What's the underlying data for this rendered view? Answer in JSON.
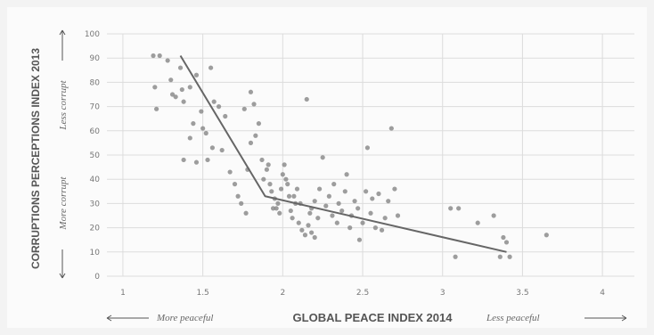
{
  "chart_data": {
    "type": "scatter",
    "xlabel": "GLOBAL PEACE INDEX 2014",
    "ylabel": "CORRUPTIONS PERCEPTIONS INDEX 2013",
    "x_low_note": "More peaceful",
    "x_high_note": "Less peaceful",
    "y_high_note": "Less corrupt",
    "y_low_note": "More corrupt",
    "xlim": [
      0.9,
      4.2
    ],
    "ylim": [
      0,
      100
    ],
    "xticks": [
      "1",
      "1.5",
      "2",
      "2.5",
      "3",
      "3.5",
      "4"
    ],
    "yticks": [
      "0",
      "10",
      "20",
      "30",
      "40",
      "50",
      "60",
      "70",
      "80",
      "90",
      "100"
    ],
    "grid": true,
    "trend_line": [
      [
        1.36,
        91
      ],
      [
        1.89,
        33
      ],
      [
        3.4,
        10
      ]
    ],
    "points": [
      [
        1.19,
        91
      ],
      [
        1.23,
        91
      ],
      [
        1.28,
        89
      ],
      [
        1.36,
        86
      ],
      [
        1.2,
        78
      ],
      [
        1.21,
        69
      ],
      [
        1.3,
        81
      ],
      [
        1.33,
        74
      ],
      [
        1.38,
        72
      ],
      [
        1.42,
        78
      ],
      [
        1.46,
        83
      ],
      [
        1.55,
        86
      ],
      [
        1.31,
        75
      ],
      [
        1.37,
        77
      ],
      [
        1.44,
        63
      ],
      [
        1.49,
        68
      ],
      [
        1.5,
        61
      ],
      [
        1.52,
        59
      ],
      [
        1.57,
        72
      ],
      [
        1.6,
        70
      ],
      [
        1.64,
        66
      ],
      [
        1.42,
        57
      ],
      [
        1.46,
        47
      ],
      [
        1.53,
        48
      ],
      [
        1.56,
        53
      ],
      [
        1.38,
        48
      ],
      [
        1.62,
        52
      ],
      [
        1.67,
        43
      ],
      [
        1.7,
        38
      ],
      [
        1.72,
        33
      ],
      [
        1.74,
        30
      ],
      [
        1.77,
        26
      ],
      [
        1.78,
        44
      ],
      [
        1.8,
        55
      ],
      [
        1.83,
        58
      ],
      [
        1.85,
        63
      ],
      [
        1.8,
        76
      ],
      [
        1.76,
        69
      ],
      [
        1.82,
        71
      ],
      [
        1.87,
        48
      ],
      [
        1.9,
        44
      ],
      [
        1.92,
        38
      ],
      [
        1.93,
        35
      ],
      [
        1.95,
        32
      ],
      [
        1.96,
        28
      ],
      [
        1.97,
        30
      ],
      [
        1.99,
        36
      ],
      [
        2.0,
        42
      ],
      [
        2.01,
        46
      ],
      [
        2.02,
        40
      ],
      [
        2.04,
        33
      ],
      [
        2.05,
        27
      ],
      [
        2.06,
        24
      ],
      [
        2.08,
        30
      ],
      [
        2.09,
        36
      ],
      [
        2.1,
        22
      ],
      [
        2.12,
        19
      ],
      [
        2.14,
        17
      ],
      [
        2.15,
        73
      ],
      [
        2.16,
        21
      ],
      [
        2.17,
        26
      ],
      [
        2.18,
        28
      ],
      [
        2.2,
        31
      ],
      [
        2.22,
        24
      ],
      [
        2.23,
        36
      ],
      [
        2.25,
        49
      ],
      [
        2.27,
        29
      ],
      [
        2.29,
        33
      ],
      [
        2.31,
        25
      ],
      [
        2.32,
        38
      ],
      [
        2.34,
        22
      ],
      [
        2.35,
        30
      ],
      [
        2.37,
        27
      ],
      [
        2.39,
        35
      ],
      [
        2.4,
        42
      ],
      [
        2.42,
        20
      ],
      [
        2.43,
        25
      ],
      [
        2.45,
        31
      ],
      [
        2.47,
        28
      ],
      [
        2.48,
        15
      ],
      [
        2.5,
        22
      ],
      [
        2.52,
        35
      ],
      [
        2.53,
        53
      ],
      [
        2.55,
        26
      ],
      [
        2.56,
        32
      ],
      [
        2.58,
        20
      ],
      [
        2.6,
        34
      ],
      [
        2.62,
        19
      ],
      [
        2.64,
        24
      ],
      [
        2.66,
        31
      ],
      [
        2.68,
        61
      ],
      [
        2.7,
        36
      ],
      [
        2.72,
        25
      ],
      [
        2.18,
        18
      ],
      [
        2.2,
        16
      ],
      [
        1.98,
        26
      ],
      [
        2.03,
        38
      ],
      [
        2.07,
        33
      ],
      [
        2.11,
        30
      ],
      [
        1.88,
        40
      ],
      [
        1.91,
        46
      ],
      [
        1.94,
        28
      ],
      [
        3.05,
        28
      ],
      [
        3.1,
        28
      ],
      [
        3.08,
        8
      ],
      [
        3.22,
        22
      ],
      [
        3.32,
        25
      ],
      [
        3.38,
        16
      ],
      [
        3.4,
        14
      ],
      [
        3.42,
        8
      ],
      [
        3.36,
        8
      ],
      [
        3.65,
        17
      ]
    ]
  }
}
